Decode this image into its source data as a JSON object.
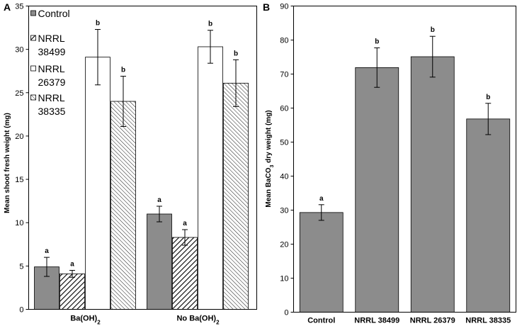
{
  "chart_data": [
    {
      "type": "bar",
      "panel_label": "A",
      "ylabel": "Mean shoot fresh weight (mg)",
      "ylim": [
        0,
        35
      ],
      "yticks": [
        0,
        5,
        10,
        15,
        20,
        25,
        30,
        35
      ],
      "groups": [
        {
          "label": "Ba(OH)",
          "sub": "2"
        },
        {
          "label": "No Ba(OH)",
          "sub": "2"
        }
      ],
      "series": [
        {
          "name": "Control",
          "legend": [
            "Control"
          ],
          "pattern": "solid",
          "color": "#8c8c8c",
          "values": [
            4.9,
            11.0
          ],
          "errors": [
            1.1,
            0.9
          ],
          "letters": [
            "a",
            "a"
          ]
        },
        {
          "name": "NRRL 38499",
          "legend": [
            "NRRL",
            "38499"
          ],
          "pattern": "hatch-back",
          "color": "#ffffff",
          "values": [
            4.1,
            8.3
          ],
          "errors": [
            0.4,
            0.9
          ],
          "letters": [
            "a",
            "a"
          ]
        },
        {
          "name": "NRRL 26379",
          "legend": [
            "NRRL",
            "26379"
          ],
          "pattern": "white",
          "color": "#ffffff",
          "values": [
            29.1,
            30.3
          ],
          "errors": [
            3.2,
            1.9
          ],
          "letters": [
            "b",
            "b"
          ]
        },
        {
          "name": "NRRL 38335",
          "legend": [
            "NRRL",
            "38335"
          ],
          "pattern": "hatch-fwd",
          "color": "#ffffff",
          "values": [
            24.0,
            26.1
          ],
          "errors": [
            2.9,
            2.7
          ],
          "letters": [
            "b",
            "b"
          ]
        }
      ]
    },
    {
      "type": "bar",
      "panel_label": "B",
      "ylabel": [
        "Mean BaCO",
        "3",
        " dry weight (mg)"
      ],
      "ylim": [
        0,
        90
      ],
      "yticks": [
        0,
        10,
        20,
        30,
        40,
        50,
        60,
        70,
        80,
        90
      ],
      "categories": [
        "Control",
        "NRRL 38499",
        "NRRL 26379",
        "NRRL 38335"
      ],
      "values": [
        29.3,
        71.9,
        75.1,
        56.8
      ],
      "errors": [
        2.3,
        5.8,
        6.0,
        4.6
      ],
      "letters": [
        "a",
        "b",
        "b",
        "b"
      ],
      "color": "#8c8c8c"
    }
  ],
  "colors": {
    "bar_gray": "#8c8c8c",
    "axis": "#000000",
    "hatch": "#000000"
  }
}
